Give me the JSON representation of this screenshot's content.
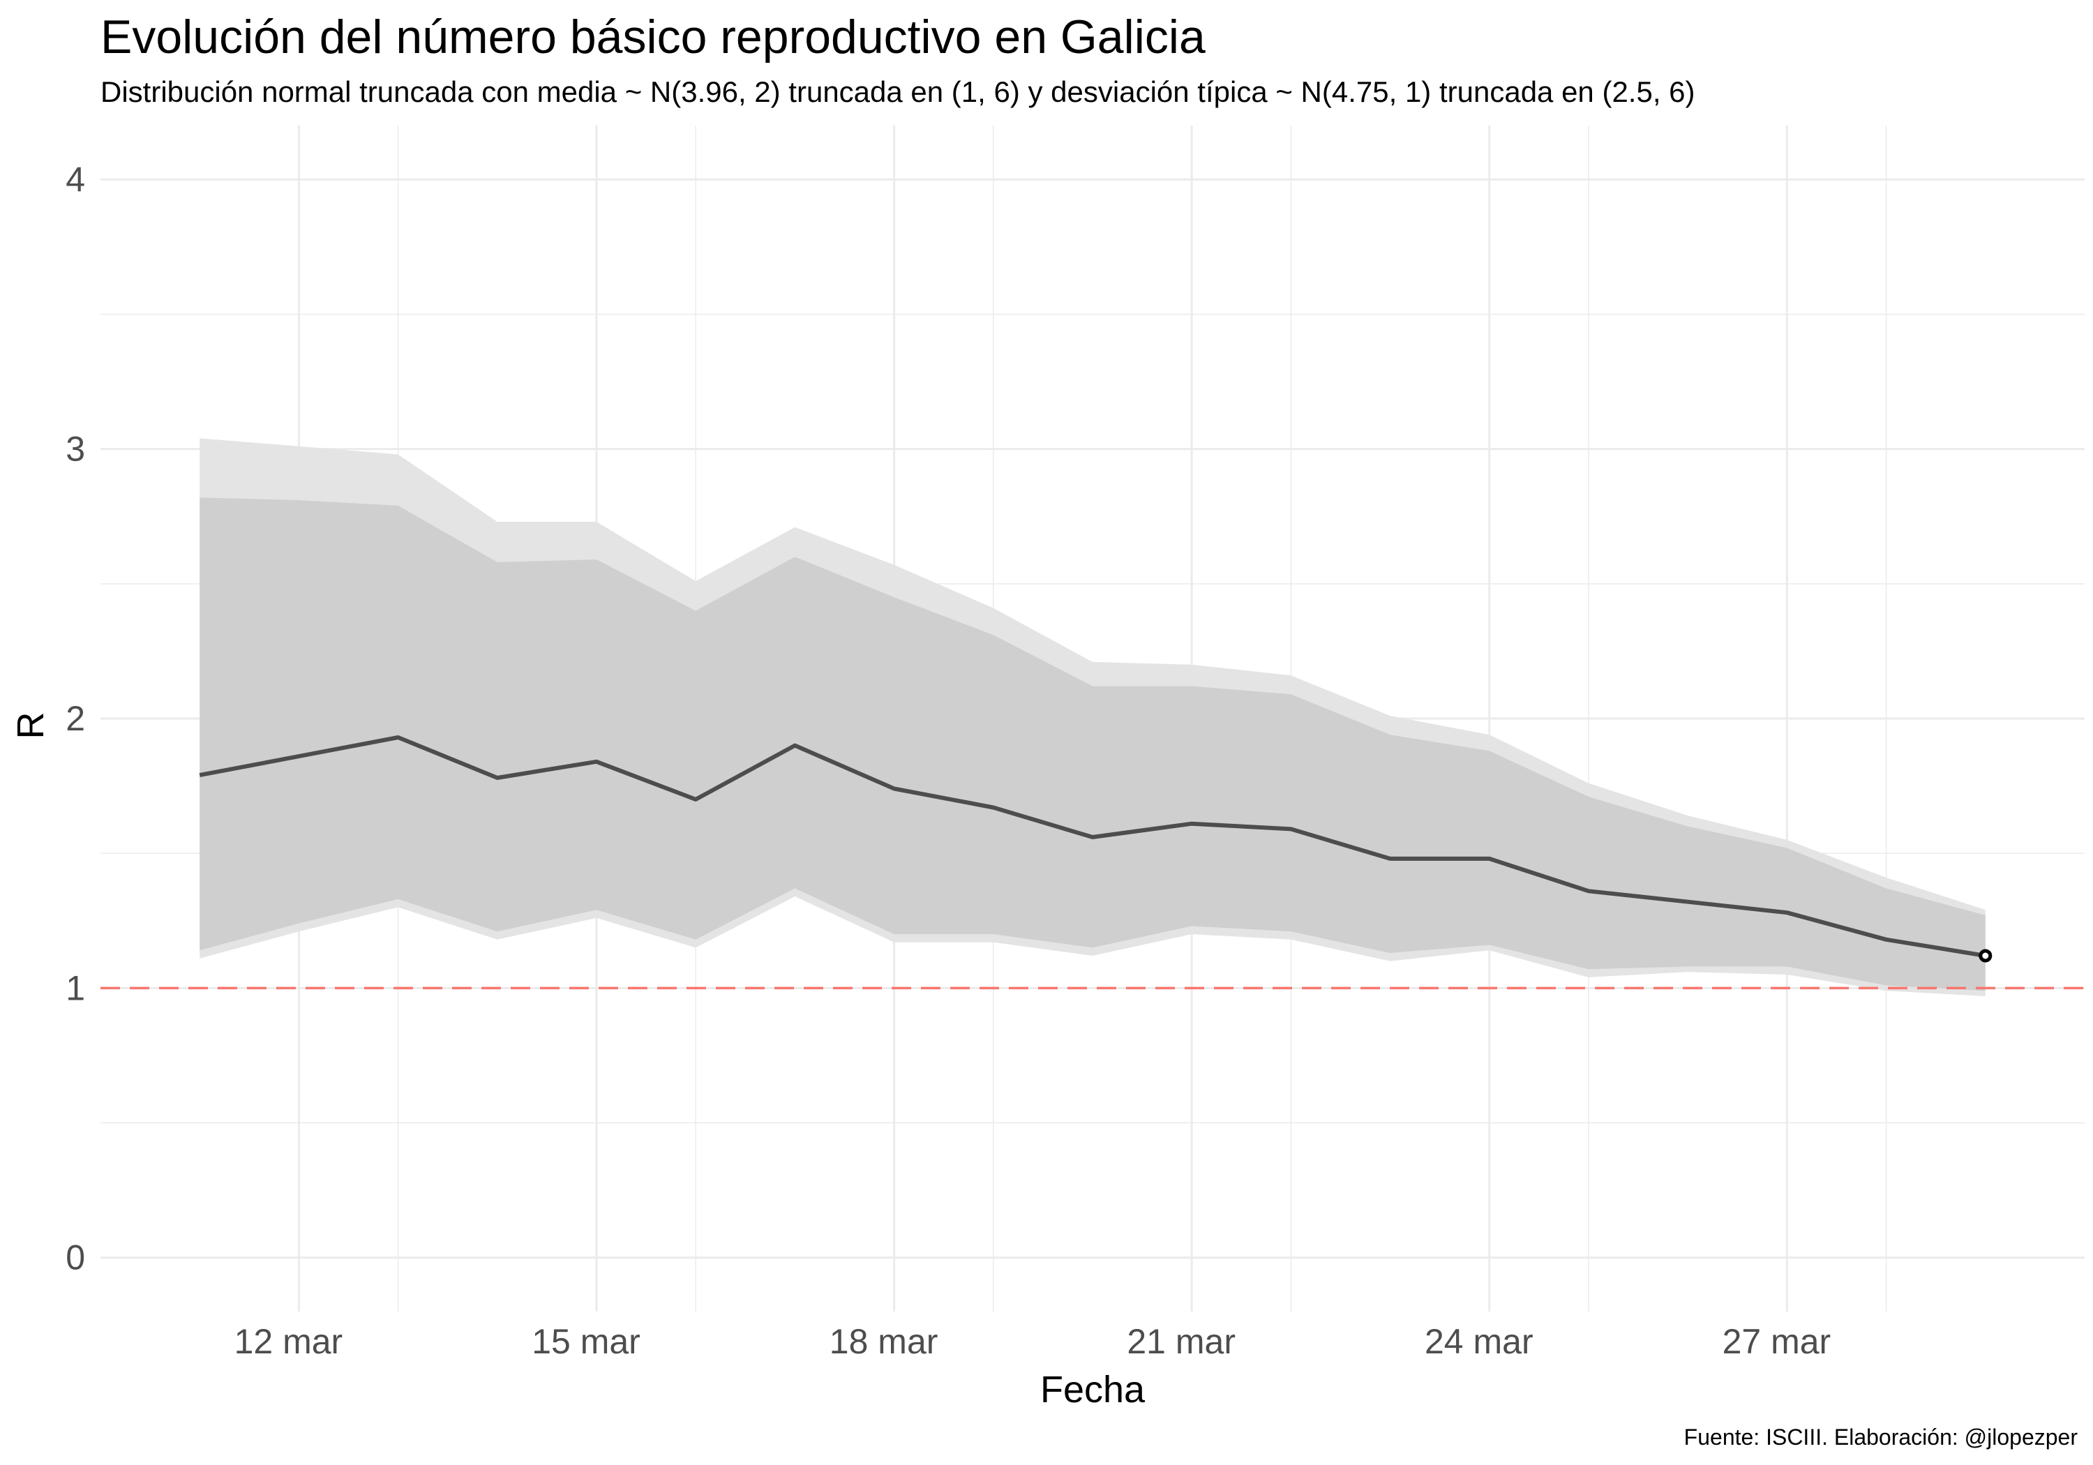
{
  "chart_data": {
    "type": "line",
    "title": "Evolución del número básico reproductivo en Galicia",
    "subtitle": "Distribución normal truncada con media ~ N(3.96, 2) truncada en (1, 6) y desviación típica ~ N(4.75, 1) truncada en (2.5, 6)",
    "caption": "Fuente: ISCIII. Elaboración: @jlopezper",
    "xlabel": "Fecha",
    "ylabel": "R",
    "ylim": [
      -0.2,
      4.2
    ],
    "xlim": [
      "2020-03-10",
      "2020-03-30"
    ],
    "y_ticks": [
      0,
      1,
      2,
      3,
      4
    ],
    "x_ticks": [
      {
        "date": "2020-03-12",
        "label": "12 mar"
      },
      {
        "date": "2020-03-15",
        "label": "15 mar"
      },
      {
        "date": "2020-03-18",
        "label": "18 mar"
      },
      {
        "date": "2020-03-21",
        "label": "21 mar"
      },
      {
        "date": "2020-03-24",
        "label": "24 mar"
      },
      {
        "date": "2020-03-27",
        "label": "27 mar"
      }
    ],
    "grid": true,
    "reference_line": {
      "y": 1,
      "style": "dashed",
      "color": "#f8766d"
    },
    "x": [
      "2020-03-11",
      "2020-03-12",
      "2020-03-13",
      "2020-03-14",
      "2020-03-15",
      "2020-03-16",
      "2020-03-17",
      "2020-03-18",
      "2020-03-19",
      "2020-03-20",
      "2020-03-21",
      "2020-03-22",
      "2020-03-23",
      "2020-03-24",
      "2020-03-25",
      "2020-03-26",
      "2020-03-27",
      "2020-03-28"
    ],
    "series": [
      {
        "values": [
          1.79,
          1.86,
          1.93,
          1.78,
          1.84,
          1.7,
          1.9,
          1.74,
          1.67,
          1.56,
          1.61,
          1.59,
          1.48,
          1.48,
          1.36,
          1.32,
          1.28,
          1.18
        ],
        "color": "#4d4d4d"
      }
    ],
    "ribbons": [
      {
        "lower": [
          1.11,
          1.21,
          1.3,
          1.18,
          1.26,
          1.15,
          1.34,
          1.17,
          1.17,
          1.12,
          1.2,
          1.18,
          1.1,
          1.14,
          1.04,
          1.06,
          1.05,
          0.99
        ],
        "upper": [
          3.04,
          3.01,
          2.98,
          2.73,
          2.73,
          2.51,
          2.71,
          2.57,
          2.41,
          2.21,
          2.2,
          2.16,
          2.01,
          1.94,
          1.76,
          1.64,
          1.55,
          1.41
        ],
        "color": "#e4e4e4"
      },
      {
        "lower": [
          1.14,
          1.24,
          1.33,
          1.21,
          1.29,
          1.18,
          1.37,
          1.2,
          1.2,
          1.15,
          1.23,
          1.21,
          1.13,
          1.16,
          1.07,
          1.08,
          1.08,
          1.01
        ],
        "upper": [
          2.82,
          2.81,
          2.79,
          2.58,
          2.59,
          2.4,
          2.6,
          2.45,
          2.31,
          2.12,
          2.12,
          2.09,
          1.94,
          1.88,
          1.71,
          1.6,
          1.52,
          1.37
        ],
        "color": "#cfcfcf"
      }
    ],
    "last_point": {
      "date": "2020-03-29",
      "value": 1.12
    },
    "last_band": {
      "lower_outer": 0.97,
      "upper_outer": 1.29,
      "lower_inner": 0.99,
      "upper_inner": 1.27
    }
  }
}
